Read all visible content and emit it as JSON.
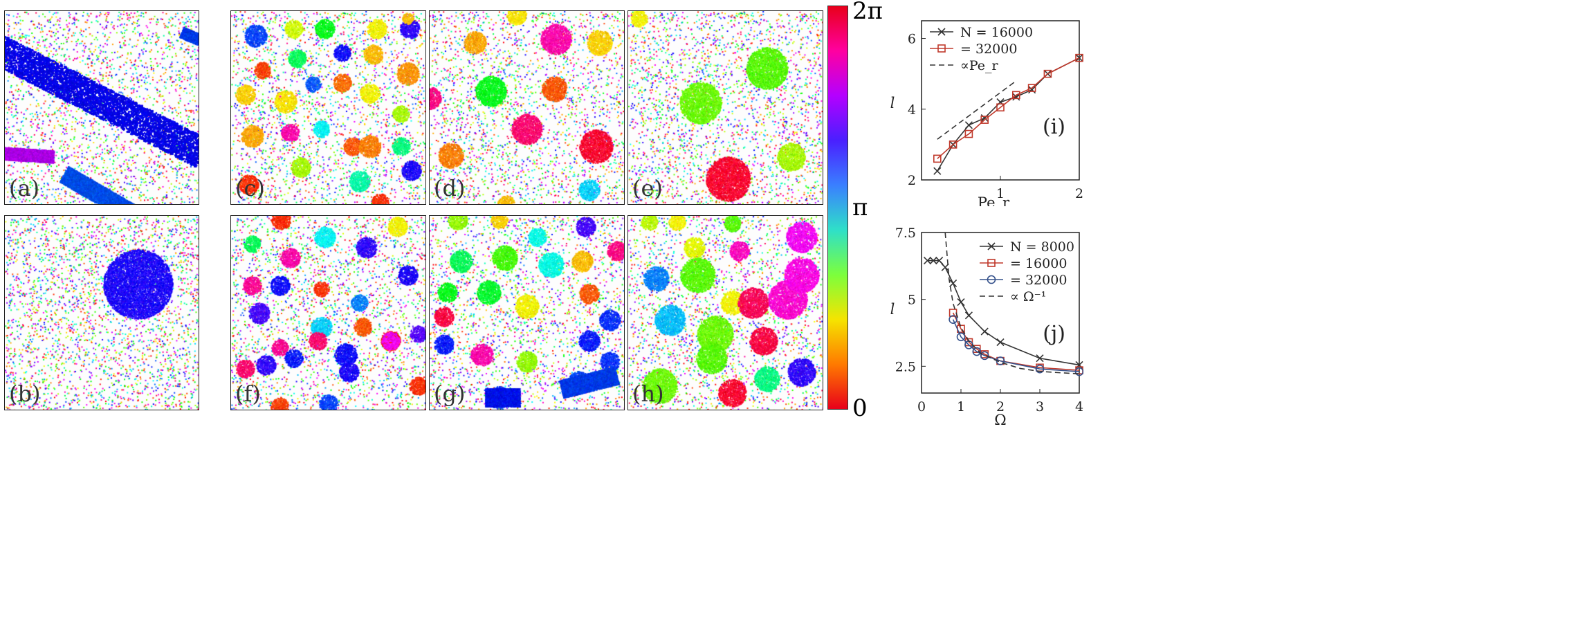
{
  "panels": [
    {
      "label": "(a)",
      "description": "band"
    },
    {
      "label": "(b)",
      "description": "single blob"
    },
    {
      "label": "(c)"
    },
    {
      "label": "(d)"
    },
    {
      "label": "(e)"
    },
    {
      "label": "(f)"
    },
    {
      "label": "(g)"
    },
    {
      "label": "(h)"
    }
  ],
  "colorbar": {
    "ticks": [
      "0",
      "π",
      "2π"
    ],
    "colors": [
      "#e8001a",
      "#ff7a00",
      "#f5e400",
      "#7cff3c",
      "#2fe0c8",
      "#3a7fff",
      "#4a1fff",
      "#b400ff",
      "#ff00a0",
      "#e8001a"
    ]
  },
  "chart_data": [
    {
      "type": "line",
      "panel_label": "(i)",
      "xlabel": "Pe_r",
      "ylabel": "l",
      "xlim": [
        0.0,
        2.0
      ],
      "ylim": [
        2.0,
        6.5
      ],
      "xticks": [
        "1",
        "2"
      ],
      "yticks": [
        "2",
        "4",
        "6"
      ],
      "legend_position": "top-left",
      "series": [
        {
          "name": "N = 16000",
          "marker": "x",
          "color": "#333333",
          "x": [
            0.2,
            0.4,
            0.6,
            0.8,
            1.0,
            1.2,
            1.4,
            1.6,
            2.0
          ],
          "y": [
            2.25,
            3.0,
            3.55,
            3.75,
            4.2,
            4.35,
            4.55,
            5.0,
            5.45
          ]
        },
        {
          "name": "= 32000",
          "marker": "square",
          "color": "#c0392b",
          "x": [
            0.2,
            0.4,
            0.6,
            0.8,
            1.0,
            1.2,
            1.4,
            1.6,
            2.0
          ],
          "y": [
            2.6,
            3.0,
            3.3,
            3.7,
            4.05,
            4.4,
            4.6,
            5.0,
            5.45
          ]
        },
        {
          "name": "∝Pe_r",
          "style": "dashed",
          "color": "#333333",
          "x": [
            0.2,
            1.2
          ],
          "y": [
            3.15,
            4.8
          ]
        }
      ]
    },
    {
      "type": "line",
      "panel_label": "(j)",
      "xlabel": "Ω",
      "ylabel": "l",
      "xlim": [
        0,
        4
      ],
      "ylim": [
        1.5,
        7.5
      ],
      "xticks": [
        "0",
        "1",
        "2",
        "3",
        "4"
      ],
      "yticks": [
        "2.5",
        "5",
        "7.5"
      ],
      "legend_position": "top-right",
      "series": [
        {
          "name": "N = 8000",
          "marker": "x",
          "color": "#333333",
          "x": [
            0.15,
            0.3,
            0.45,
            0.6,
            0.8,
            1.0,
            1.2,
            1.6,
            2.0,
            3.0,
            4.0
          ],
          "y": [
            6.45,
            6.45,
            6.45,
            6.2,
            5.6,
            4.9,
            4.4,
            3.8,
            3.4,
            2.8,
            2.55
          ]
        },
        {
          "name": "= 16000",
          "marker": "square",
          "color": "#c0392b",
          "x": [
            0.8,
            1.0,
            1.2,
            1.4,
            1.6,
            2.0,
            3.0,
            4.0
          ],
          "y": [
            4.5,
            3.9,
            3.4,
            3.15,
            2.95,
            2.7,
            2.45,
            2.35
          ]
        },
        {
          "name": "= 32000",
          "marker": "circle",
          "color": "#34508a",
          "x": [
            0.8,
            1.0,
            1.2,
            1.4,
            1.6,
            2.0,
            3.0,
            4.0
          ],
          "y": [
            4.25,
            3.6,
            3.3,
            3.05,
            2.9,
            2.7,
            2.4,
            2.3
          ]
        },
        {
          "name": "∝ Ω⁻¹",
          "style": "dashed",
          "color": "#333333",
          "x": [
            0.6,
            0.7,
            0.8,
            1.0,
            1.2,
            1.5,
            2.0,
            2.5,
            3.0,
            3.5,
            4.0
          ],
          "y": [
            7.5,
            5.75,
            4.85,
            3.95,
            3.45,
            2.98,
            2.65,
            2.42,
            2.31,
            2.26,
            2.22
          ]
        }
      ]
    }
  ]
}
